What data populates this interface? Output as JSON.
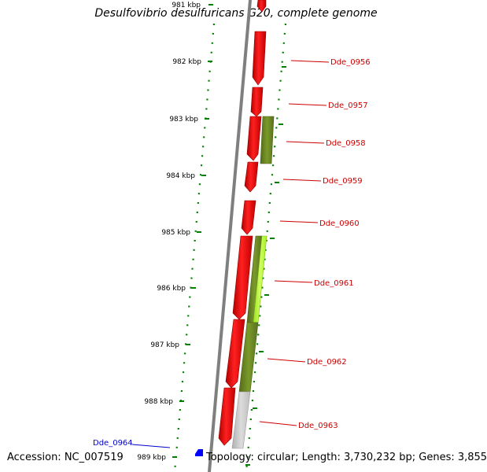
{
  "title": "Desulfovibrio desulfuricans G20, complete genome",
  "accession": "Accession: NC_007519",
  "footer_info": "Topology: circular; Length: 3,730,232 bp; Genes: 3,855",
  "ruler": {
    "unit": "kbp",
    "ticks": [
      "981 kbp",
      "982 kbp",
      "983 kbp",
      "984 kbp",
      "985 kbp",
      "986 kbp",
      "987 kbp",
      "988 kbp",
      "989 kbp"
    ]
  },
  "colors": {
    "gene": "#ff0000",
    "gene_label": "#cc0000",
    "highlight_label": "#0000cc",
    "highlight_marker": "#0000ff",
    "olive_feature": "#6b8e23",
    "lime_feature": "#adff2f",
    "gray_feature": "#c8c8c8",
    "backbone": "#808080",
    "dots": "#008000"
  },
  "gene_labels": [
    {
      "id": "gene-label-dde0956",
      "text": "Dde_0956"
    },
    {
      "id": "gene-label-dde0957",
      "text": "Dde_0957"
    },
    {
      "id": "gene-label-dde0958",
      "text": "Dde_0958"
    },
    {
      "id": "gene-label-dde0959",
      "text": "Dde_0959"
    },
    {
      "id": "gene-label-dde0960",
      "text": "Dde_0960"
    },
    {
      "id": "gene-label-dde0961",
      "text": "Dde_0961"
    },
    {
      "id": "gene-label-dde0962",
      "text": "Dde_0962"
    },
    {
      "id": "gene-label-dde0963",
      "text": "Dde_0963"
    }
  ],
  "highlight_label": "Dde_0964"
}
